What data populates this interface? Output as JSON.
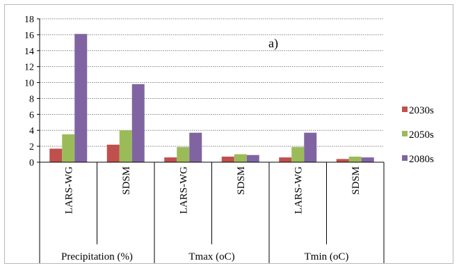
{
  "chart_data": {
    "type": "bar",
    "title": "",
    "annotation": "a)",
    "xlabel": "",
    "ylabel": "",
    "ylim": [
      0,
      18
    ],
    "yticks": [
      0,
      2,
      4,
      6,
      8,
      10,
      12,
      14,
      16,
      18
    ],
    "grid": true,
    "legend_position": "right",
    "categories": [
      "LARS-WG",
      "SDSM",
      "LARS-WG",
      "SDSM",
      "LARS-WG",
      "SDSM"
    ],
    "groups": [
      {
        "label": "Precipitation (%)",
        "span": 2
      },
      {
        "label": "Tmax (oC)",
        "span": 2
      },
      {
        "label": "Tmin (oC)",
        "span": 2
      }
    ],
    "series": [
      {
        "name": "2030s",
        "color": "#c0504d",
        "values": [
          1.7,
          2.2,
          0.6,
          0.7,
          0.6,
          0.4
        ]
      },
      {
        "name": "2050s",
        "color": "#9bbb59",
        "values": [
          3.5,
          4.0,
          1.9,
          1.0,
          1.9,
          0.7
        ]
      },
      {
        "name": "2080s",
        "color": "#8064a2",
        "values": [
          16.1,
          9.8,
          3.7,
          0.9,
          3.7,
          0.6
        ]
      }
    ]
  }
}
